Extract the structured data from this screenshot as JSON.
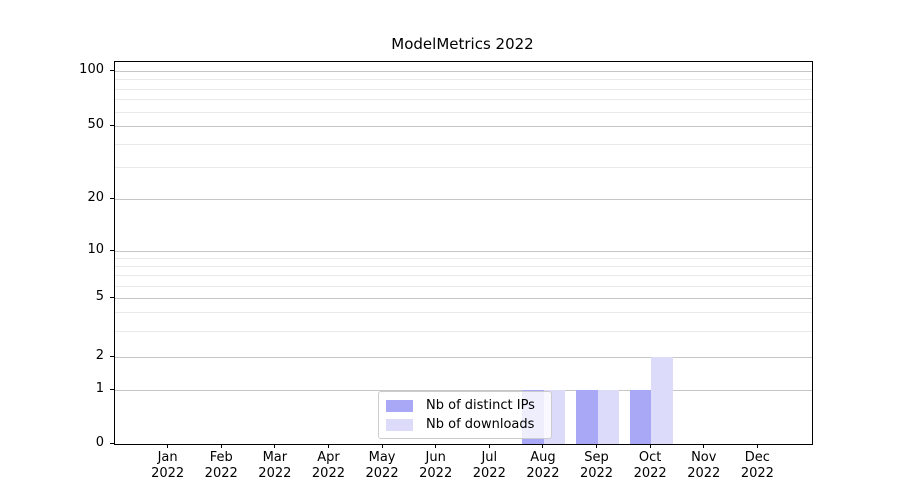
{
  "title": "ModelMetrics 2022",
  "chart_data": {
    "type": "bar",
    "title": "ModelMetrics 2022",
    "categories": [
      "Jan 2022",
      "Feb 2022",
      "Mar 2022",
      "Apr 2022",
      "May 2022",
      "Jun 2022",
      "Jul 2022",
      "Aug 2022",
      "Sep 2022",
      "Oct 2022",
      "Nov 2022",
      "Dec 2022"
    ],
    "series": [
      {
        "name": "Nb of distinct IPs",
        "color": "#a8a8f6",
        "values": [
          0,
          0,
          0,
          0,
          0,
          0,
          0,
          1,
          1,
          1,
          0,
          0
        ]
      },
      {
        "name": "Nb of downloads",
        "color": "#dcdcfa",
        "values": [
          0,
          0,
          0,
          0,
          0,
          0,
          0,
          1,
          1,
          2,
          0,
          0
        ]
      }
    ],
    "xlabel": "",
    "ylabel": "",
    "y_ticks": [
      100,
      50,
      20,
      10,
      5,
      2,
      1,
      0
    ],
    "ylim": [
      0,
      112
    ],
    "yscale": "symlog",
    "grid": "horizontal major and minor",
    "legend_position": "inside bottom-center"
  },
  "colors": {
    "grid_major": "#c6c6c6",
    "grid_minor": "#e9e9e9",
    "spine": "#000000"
  }
}
